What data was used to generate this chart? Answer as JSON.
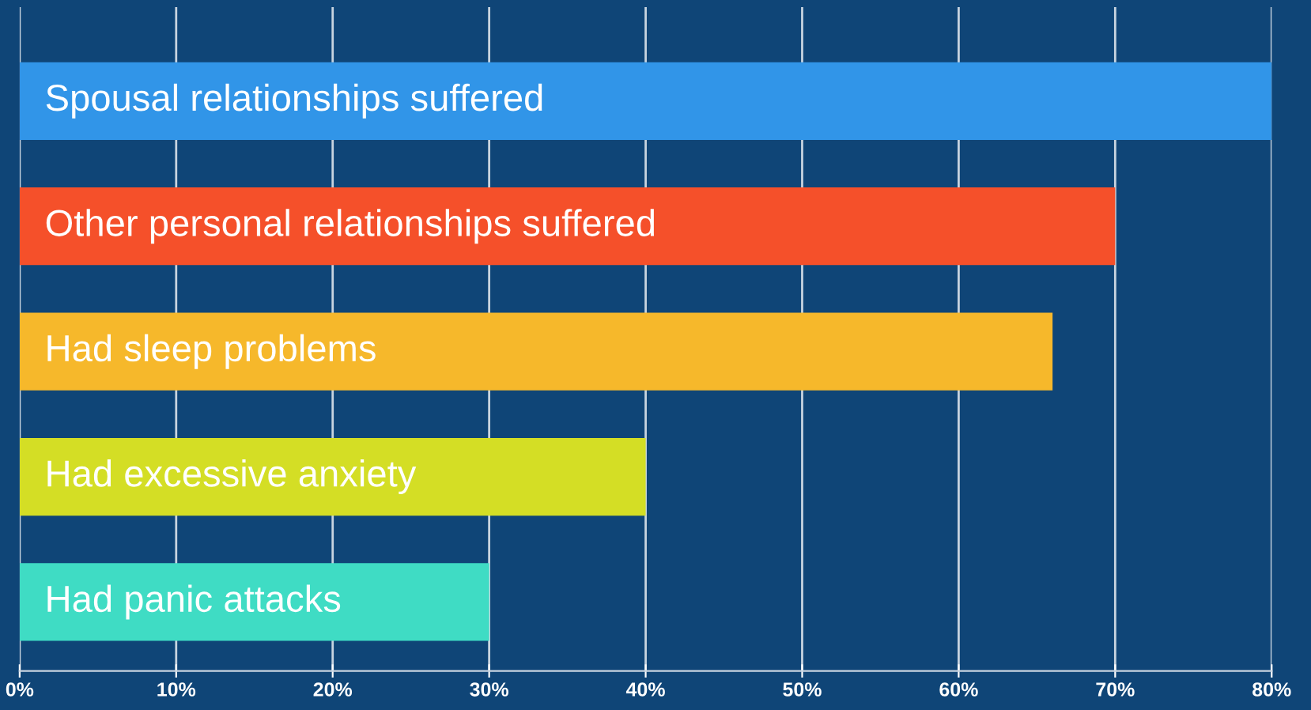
{
  "chart_data": {
    "type": "bar",
    "orientation": "horizontal",
    "categories": [
      "Spousal relationships suffered",
      "Other personal relationships suffered",
      "Had sleep problems",
      "Had excessive anxiety",
      "Had panic attacks"
    ],
    "values": [
      80,
      70,
      66,
      40,
      30
    ],
    "colors": [
      "#3195e8",
      "#f5502a",
      "#f6b82b",
      "#d4de25",
      "#3fdcc4"
    ],
    "xlim": [
      0,
      80
    ],
    "xticks": [
      {
        "value": 0,
        "label": "0%"
      },
      {
        "value": 10,
        "label": "10%"
      },
      {
        "value": 20,
        "label": "20%"
      },
      {
        "value": 30,
        "label": "30%"
      },
      {
        "value": 40,
        "label": "40%"
      },
      {
        "value": 50,
        "label": "50%"
      },
      {
        "value": 60,
        "label": "60%"
      },
      {
        "value": 70,
        "label": "70%"
      },
      {
        "value": 80,
        "label": "80%"
      }
    ],
    "grid": "x",
    "tick_labels": "x"
  }
}
